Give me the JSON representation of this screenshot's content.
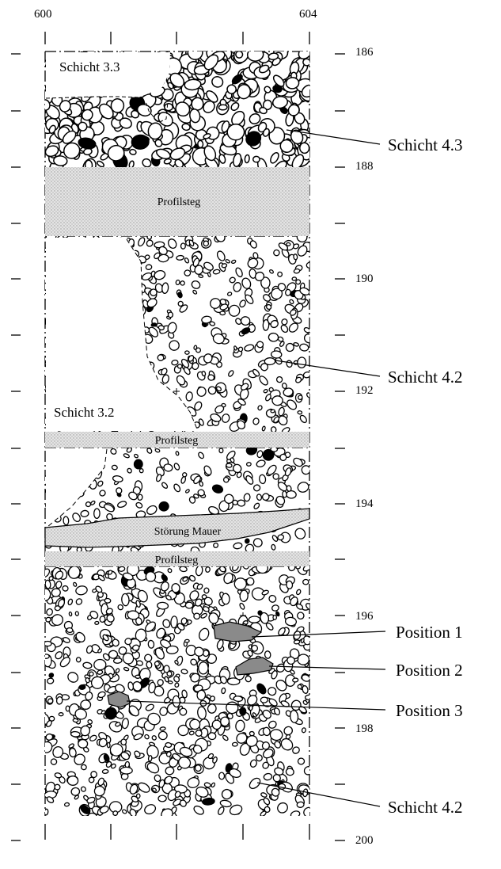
{
  "x_axis": {
    "left": "600",
    "right": "604"
  },
  "y_axis": {
    "ticks": [
      "186",
      "188",
      "190",
      "192",
      "194",
      "196",
      "198",
      "200"
    ]
  },
  "layers": {
    "schicht_33": "Schicht 3.3",
    "schicht_32": "Schicht 3.2",
    "schicht_43": "Schicht 4.3",
    "schicht_42_top": "Schicht 4.2",
    "schicht_42_bottom": "Schicht 4.2"
  },
  "bands": {
    "profilsteg_1": "Profilsteg",
    "profilsteg_2": "Profilsteg",
    "profilsteg_3": "Profilsteg",
    "stoerung": "Störung Mauer"
  },
  "positions": {
    "p1": "Position 1",
    "p2": "Position 2",
    "p3": "Position 3"
  },
  "colors": {
    "stone_outline": "#000000",
    "band_fill": "#d9d9d9",
    "position_fill": "#8a8a8a"
  }
}
